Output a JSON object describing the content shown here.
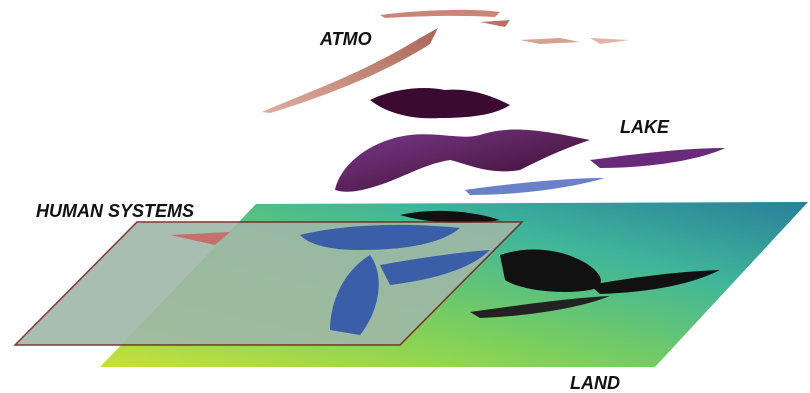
{
  "labels": {
    "atmo": "ATMO",
    "lake": "LAKE",
    "human_systems": "HUMAN SYSTEMS",
    "land": "LAND"
  }
}
